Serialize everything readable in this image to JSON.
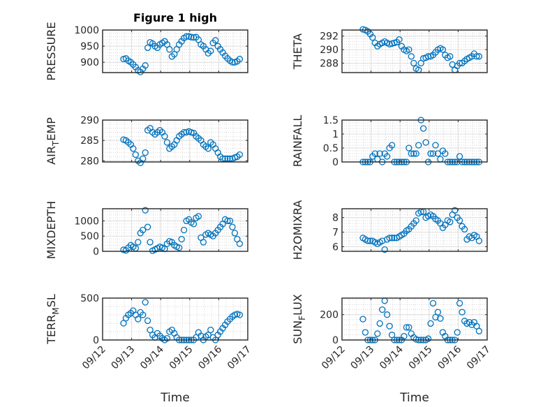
{
  "figure": {
    "title": "Figure 1 high",
    "marker_color": "#0072BD"
  },
  "chart_data": [
    {
      "type": "scatter",
      "ylabel": "PRESSURE",
      "xlabel": "",
      "ylim": [
        868,
        1000
      ],
      "yticks": [
        900,
        950,
        1000
      ],
      "values": [
        910,
        912,
        905,
        900,
        893,
        885,
        875,
        870,
        880,
        890,
        945,
        962,
        958,
        950,
        945,
        955,
        960,
        965,
        955,
        940,
        918,
        925,
        940,
        955,
        965,
        975,
        980,
        980,
        978,
        977,
        978,
        970,
        955,
        950,
        940,
        928,
        935,
        960,
        968,
        950,
        940,
        930,
        920,
        912,
        905,
        900,
        900,
        903,
        910
      ]
    },
    {
      "type": "scatter",
      "ylabel": "THETA",
      "xlabel": "",
      "ylim": [
        286.6,
        292.9
      ],
      "yticks": [
        288,
        290,
        292
      ],
      "values": [
        293,
        292.9,
        292.7,
        292.3,
        291.8,
        291,
        290.5,
        290.8,
        291,
        291.2,
        291,
        290.8,
        290.9,
        291,
        291.1,
        291.5,
        290.5,
        290,
        289.8,
        290,
        289,
        288,
        287.2,
        287,
        288,
        288.7,
        288.8,
        289,
        289,
        289.2,
        289.6,
        290,
        290.2,
        290,
        289.2,
        288.8,
        289,
        287.8,
        287,
        287.6,
        288,
        288,
        288.3,
        288.6,
        288.8,
        289,
        289.4,
        289,
        289
      ]
    },
    {
      "type": "scatter",
      "ylabel": "AIR_TEMP",
      "xlabel": "",
      "ylim": [
        279.7,
        290
      ],
      "yticks": [
        280,
        285,
        290
      ],
      "values": [
        285.2,
        285,
        284.5,
        284,
        283,
        281.5,
        280,
        279.5,
        280.5,
        282,
        287.5,
        288,
        287,
        286.5,
        287,
        287.5,
        287,
        286,
        284.5,
        283,
        283.5,
        284,
        285,
        286,
        286.5,
        287,
        287,
        287.2,
        287,
        286.8,
        286,
        285.5,
        285,
        284,
        283.5,
        283,
        284.5,
        284,
        283,
        282,
        281,
        280.5,
        280.5,
        280.5,
        280.5,
        280.5,
        280.8,
        281,
        281.5
      ]
    },
    {
      "type": "scatter",
      "ylabel": "RAINFALL",
      "xlabel": "",
      "ylim": [
        0,
        1.5
      ],
      "yticks": [
        0,
        0.5,
        1,
        1.5
      ],
      "values": [
        0,
        0,
        0,
        0,
        0.2,
        0.3,
        0.1,
        0.3,
        0,
        0.3,
        0.2,
        0.5,
        0.6,
        0,
        0,
        0,
        0,
        0,
        0,
        0.5,
        0.3,
        0.3,
        0.3,
        0.6,
        1.5,
        1.2,
        0.7,
        0,
        0.3,
        0.3,
        0.6,
        0.3,
        0.1,
        0.4,
        0.3,
        0,
        0,
        0,
        0,
        0,
        0.2,
        0,
        0,
        0,
        0,
        0,
        0,
        0,
        0
      ]
    },
    {
      "type": "scatter",
      "ylabel": "MIXDEPTH",
      "xlabel": "",
      "ylim": [
        0,
        1400
      ],
      "yticks": [
        0,
        500,
        1000
      ],
      "values": [
        50,
        30,
        120,
        200,
        150,
        100,
        300,
        600,
        700,
        1350,
        800,
        300,
        20,
        60,
        100,
        150,
        120,
        80,
        250,
        330,
        300,
        200,
        150,
        120,
        400,
        700,
        1000,
        1050,
        950,
        900,
        1100,
        1150,
        450,
        300,
        550,
        600,
        550,
        500,
        600,
        700,
        800,
        900,
        1050,
        1000,
        1000,
        800,
        600,
        400,
        250
      ]
    },
    {
      "type": "scatter",
      "ylabel": "H2OMIXRA",
      "xlabel": "",
      "ylim": [
        5.68,
        8.61
      ],
      "yticks": [
        6,
        7,
        8
      ],
      "values": [
        6.6,
        6.5,
        6.4,
        6.4,
        6.4,
        6.3,
        6.2,
        6.3,
        6.4,
        5.8,
        6.5,
        6.6,
        6.6,
        6.6,
        6.6,
        6.7,
        6.8,
        6.9,
        7.1,
        7.2,
        7.4,
        7.6,
        7.8,
        8.3,
        8.4,
        8.4,
        8.0,
        8.1,
        8.2,
        8.1,
        7.9,
        7.8,
        7.6,
        7.3,
        7.5,
        7.8,
        7.7,
        8.2,
        8.5,
        8.0,
        7.8,
        7.4,
        7.2,
        6.5,
        6.7,
        6.6,
        6.8,
        6.7,
        6.4
      ]
    },
    {
      "type": "scatter",
      "ylabel": "TERR_MSL",
      "xlabel": "Time",
      "ylim": [
        0,
        500
      ],
      "yticks": [
        0,
        500
      ],
      "values": [
        200,
        260,
        300,
        320,
        350,
        300,
        250,
        330,
        300,
        450,
        230,
        120,
        60,
        30,
        80,
        50,
        20,
        0,
        20,
        100,
        120,
        80,
        30,
        0,
        0,
        0,
        0,
        0,
        0,
        0,
        30,
        90,
        50,
        0,
        40,
        60,
        120,
        30,
        0,
        60,
        100,
        140,
        180,
        220,
        250,
        280,
        300,
        310,
        300
      ]
    },
    {
      "type": "scatter",
      "ylabel": "SUN_FLUX",
      "xlabel": "Time",
      "ylim": [
        0,
        331
      ],
      "yticks": [
        0,
        200
      ],
      "values": [
        165,
        60,
        0,
        0,
        0,
        0,
        50,
        130,
        240,
        310,
        200,
        110,
        40,
        0,
        0,
        0,
        0,
        30,
        100,
        100,
        50,
        20,
        5,
        0,
        0,
        0,
        0,
        10,
        130,
        290,
        180,
        220,
        170,
        60,
        30,
        0,
        0,
        0,
        0,
        60,
        290,
        220,
        150,
        130,
        140,
        120,
        140,
        110,
        70
      ]
    }
  ],
  "time_axis": {
    "xlim_days": [
      0,
      5
    ],
    "t_start_day": 0.72,
    "t_step_hours": 2,
    "xtick_labels": [
      "09/12",
      "09/13",
      "09/14",
      "09/15",
      "09/16",
      "09/17"
    ]
  }
}
